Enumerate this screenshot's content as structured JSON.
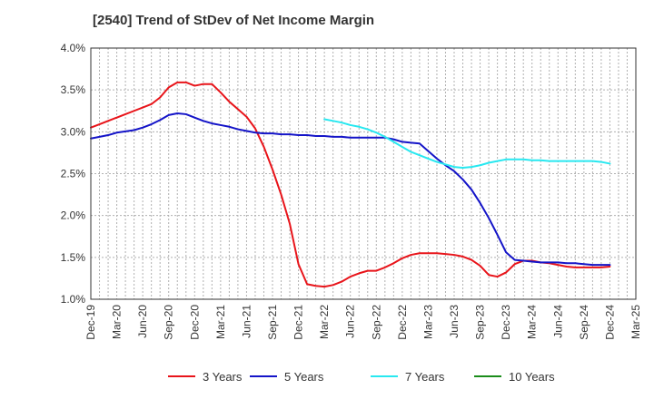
{
  "chart_data": {
    "type": "line",
    "title": "[2540]  Trend of StDev of Net Income Margin",
    "xlabel": "",
    "ylabel": "",
    "x_ticks": [
      "Dec-19",
      "Mar-20",
      "Jun-20",
      "Sep-20",
      "Dec-20",
      "Mar-21",
      "Jun-21",
      "Sep-21",
      "Dec-21",
      "Mar-22",
      "Jun-22",
      "Sep-22",
      "Dec-22",
      "Mar-23",
      "Jun-23",
      "Sep-23",
      "Dec-23",
      "Mar-24",
      "Jun-24",
      "Sep-24",
      "Dec-24",
      "Mar-25"
    ],
    "y_ticks": [
      "4.0%",
      "3.5%",
      "3.0%",
      "2.5%",
      "2.0%",
      "1.5%",
      "1.0%"
    ],
    "y_tick_values": [
      4.0,
      3.5,
      3.0,
      2.5,
      2.0,
      1.5,
      1.0
    ],
    "ylim": [
      1.0,
      4.0
    ],
    "grid": true,
    "legend_position": "bottom",
    "series": [
      {
        "name": "3 Years",
        "color": "#e8141a",
        "points": [
          [
            "Dec-19",
            3.05
          ],
          [
            "Jan-20",
            3.09
          ],
          [
            "Feb-20",
            3.13
          ],
          [
            "Mar-20",
            3.17
          ],
          [
            "Apr-20",
            3.21
          ],
          [
            "May-20",
            3.25
          ],
          [
            "Jun-20",
            3.29
          ],
          [
            "Jul-20",
            3.33
          ],
          [
            "Aug-20",
            3.41
          ],
          [
            "Sep-20",
            3.53
          ],
          [
            "Oct-20",
            3.59
          ],
          [
            "Nov-20",
            3.59
          ],
          [
            "Dec-20",
            3.55
          ],
          [
            "Jan-21",
            3.57
          ],
          [
            "Feb-21",
            3.57
          ],
          [
            "Mar-21",
            3.47
          ],
          [
            "Apr-21",
            3.36
          ],
          [
            "May-21",
            3.27
          ],
          [
            "Jun-21",
            3.18
          ],
          [
            "Jul-21",
            3.04
          ],
          [
            "Aug-21",
            2.82
          ],
          [
            "Sep-21",
            2.55
          ],
          [
            "Oct-21",
            2.25
          ],
          [
            "Nov-21",
            1.9
          ],
          [
            "Dec-21",
            1.42
          ],
          [
            "Jan-22",
            1.18
          ],
          [
            "Feb-22",
            1.16
          ],
          [
            "Mar-22",
            1.15
          ],
          [
            "Apr-22",
            1.17
          ],
          [
            "May-22",
            1.21
          ],
          [
            "Jun-22",
            1.27
          ],
          [
            "Jul-22",
            1.31
          ],
          [
            "Aug-22",
            1.34
          ],
          [
            "Sep-22",
            1.34
          ],
          [
            "Oct-22",
            1.38
          ],
          [
            "Nov-22",
            1.43
          ],
          [
            "Dec-22",
            1.49
          ],
          [
            "Jan-23",
            1.53
          ],
          [
            "Feb-23",
            1.55
          ],
          [
            "Mar-23",
            1.55
          ],
          [
            "Apr-23",
            1.55
          ],
          [
            "May-23",
            1.54
          ],
          [
            "Jun-23",
            1.53
          ],
          [
            "Jul-23",
            1.51
          ],
          [
            "Aug-23",
            1.47
          ],
          [
            "Sep-23",
            1.4
          ],
          [
            "Oct-23",
            1.29
          ],
          [
            "Nov-23",
            1.27
          ],
          [
            "Dec-23",
            1.32
          ],
          [
            "Jan-24",
            1.42
          ],
          [
            "Feb-24",
            1.46
          ],
          [
            "Mar-24",
            1.46
          ],
          [
            "Apr-24",
            1.44
          ],
          [
            "May-24",
            1.43
          ],
          [
            "Jun-24",
            1.41
          ],
          [
            "Jul-24",
            1.39
          ],
          [
            "Aug-24",
            1.38
          ],
          [
            "Sep-24",
            1.38
          ],
          [
            "Oct-24",
            1.38
          ],
          [
            "Nov-24",
            1.38
          ],
          [
            "Dec-24",
            1.39
          ]
        ]
      },
      {
        "name": "5 Years",
        "color": "#1414c8",
        "points": [
          [
            "Dec-19",
            2.92
          ],
          [
            "Feb-20",
            2.96
          ],
          [
            "Mar-20",
            2.99
          ],
          [
            "May-20",
            3.02
          ],
          [
            "Jun-20",
            3.05
          ],
          [
            "Jul-20",
            3.09
          ],
          [
            "Aug-20",
            3.14
          ],
          [
            "Sep-20",
            3.2
          ],
          [
            "Oct-20",
            3.22
          ],
          [
            "Nov-20",
            3.21
          ],
          [
            "Dec-20",
            3.17
          ],
          [
            "Jan-21",
            3.13
          ],
          [
            "Feb-21",
            3.1
          ],
          [
            "Mar-21",
            3.08
          ],
          [
            "Apr-21",
            3.06
          ],
          [
            "May-21",
            3.03
          ],
          [
            "Jun-21",
            3.01
          ],
          [
            "Jul-21",
            2.99
          ],
          [
            "Aug-21",
            2.98
          ],
          [
            "Sep-21",
            2.98
          ],
          [
            "Oct-21",
            2.97
          ],
          [
            "Nov-21",
            2.97
          ],
          [
            "Dec-21",
            2.96
          ],
          [
            "Jan-22",
            2.96
          ],
          [
            "Feb-22",
            2.95
          ],
          [
            "Mar-22",
            2.95
          ],
          [
            "Apr-22",
            2.94
          ],
          [
            "May-22",
            2.94
          ],
          [
            "Jun-22",
            2.93
          ],
          [
            "Jul-22",
            2.93
          ],
          [
            "Aug-22",
            2.93
          ],
          [
            "Sep-22",
            2.93
          ],
          [
            "Oct-22",
            2.93
          ],
          [
            "Nov-22",
            2.91
          ],
          [
            "Dec-22",
            2.88
          ],
          [
            "Jan-23",
            2.87
          ],
          [
            "Feb-23",
            2.86
          ],
          [
            "Mar-23",
            2.77
          ],
          [
            "Apr-23",
            2.68
          ],
          [
            "May-23",
            2.6
          ],
          [
            "Jun-23",
            2.53
          ],
          [
            "Jul-23",
            2.43
          ],
          [
            "Aug-23",
            2.31
          ],
          [
            "Sep-23",
            2.15
          ],
          [
            "Oct-23",
            1.97
          ],
          [
            "Nov-23",
            1.77
          ],
          [
            "Dec-23",
            1.56
          ],
          [
            "Jan-24",
            1.47
          ],
          [
            "Feb-24",
            1.46
          ],
          [
            "Mar-24",
            1.45
          ],
          [
            "Apr-24",
            1.44
          ],
          [
            "May-24",
            1.44
          ],
          [
            "Jun-24",
            1.44
          ],
          [
            "Jul-24",
            1.43
          ],
          [
            "Aug-24",
            1.43
          ],
          [
            "Sep-24",
            1.42
          ],
          [
            "Oct-24",
            1.41
          ],
          [
            "Nov-24",
            1.41
          ],
          [
            "Dec-24",
            1.41
          ]
        ]
      },
      {
        "name": "7 Years",
        "color": "#28e8f0",
        "points": [
          [
            "Mar-22",
            3.15
          ],
          [
            "Apr-22",
            3.13
          ],
          [
            "May-22",
            3.11
          ],
          [
            "Jun-22",
            3.08
          ],
          [
            "Jul-22",
            3.06
          ],
          [
            "Aug-22",
            3.03
          ],
          [
            "Sep-22",
            2.99
          ],
          [
            "Oct-22",
            2.94
          ],
          [
            "Nov-22",
            2.88
          ],
          [
            "Dec-22",
            2.82
          ],
          [
            "Jan-23",
            2.76
          ],
          [
            "Feb-23",
            2.72
          ],
          [
            "Mar-23",
            2.68
          ],
          [
            "Apr-23",
            2.64
          ],
          [
            "May-23",
            2.61
          ],
          [
            "Jun-23",
            2.58
          ],
          [
            "Jul-23",
            2.57
          ],
          [
            "Aug-23",
            2.58
          ],
          [
            "Sep-23",
            2.6
          ],
          [
            "Oct-23",
            2.63
          ],
          [
            "Nov-23",
            2.65
          ],
          [
            "Dec-23",
            2.67
          ],
          [
            "Jan-24",
            2.67
          ],
          [
            "Feb-24",
            2.67
          ],
          [
            "Mar-24",
            2.66
          ],
          [
            "Apr-24",
            2.66
          ],
          [
            "May-24",
            2.65
          ],
          [
            "Jun-24",
            2.65
          ],
          [
            "Jul-24",
            2.65
          ],
          [
            "Aug-24",
            2.65
          ],
          [
            "Sep-24",
            2.65
          ],
          [
            "Oct-24",
            2.65
          ],
          [
            "Nov-24",
            2.64
          ],
          [
            "Dec-24",
            2.62
          ]
        ]
      },
      {
        "name": "10 Years",
        "color": "#1a8c1a",
        "points": []
      }
    ]
  }
}
